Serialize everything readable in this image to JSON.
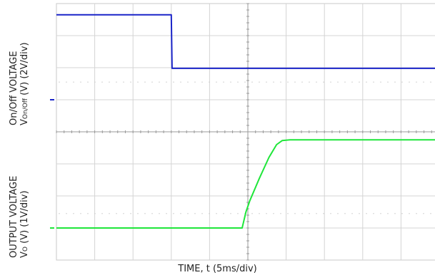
{
  "chart_data": {
    "type": "line",
    "grid": true,
    "time_per_div_ms": 5,
    "xlabel": "TIME, t (5ms/div)",
    "panels": [
      {
        "ylabel_line1": "On/Off VOLTAGE",
        "ylabel_v": "V",
        "ylabel_sub": "On/Off",
        "ylabel_rest": " (V) (2V/div)",
        "series": [
          {
            "color": "#1a24c8",
            "points_div": [
              [
                0.0,
                2.65
              ],
              [
                3.0,
                2.65
              ],
              [
                3.02,
                0.98
              ],
              [
                10.0,
                0.98
              ]
            ]
          }
        ]
      },
      {
        "ylabel_line1": "OUTPUT VOLTAGE",
        "ylabel_v": "V",
        "ylabel_sub": "O",
        "ylabel_rest": " (V) (1V/div)",
        "series": [
          {
            "color": "#1fe63a",
            "points_div": [
              [
                0.0,
                0.0
              ],
              [
                4.85,
                0.0
              ],
              [
                4.95,
                0.5
              ],
              [
                5.05,
                0.85
              ],
              [
                5.3,
                1.55
              ],
              [
                5.55,
                2.2
              ],
              [
                5.75,
                2.6
              ],
              [
                5.9,
                2.73
              ],
              [
                6.1,
                2.75
              ],
              [
                10.0,
                2.75
              ]
            ]
          }
        ]
      }
    ]
  }
}
